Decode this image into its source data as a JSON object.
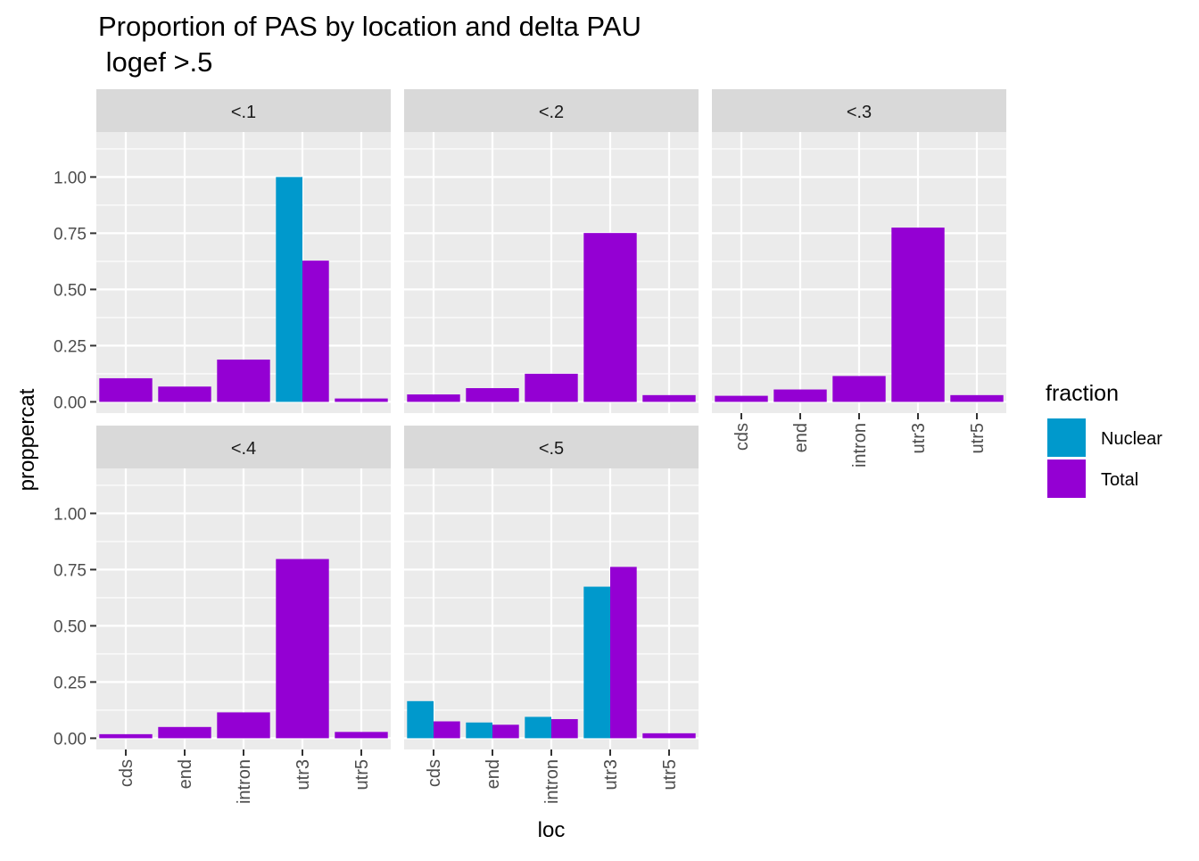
{
  "chart_data": {
    "type": "bar",
    "title_line1": "Proportion of PAS by location and delta PAU",
    "title_line2": " logef >.5",
    "xlabel": "loc",
    "ylabel": "proppercat",
    "ylim": [
      -0.05,
      1.2
    ],
    "yticks": [
      0,
      0.25,
      0.5,
      0.75,
      1.0
    ],
    "ytick_labels": [
      "0.00",
      "0.25",
      "0.50",
      "0.75",
      "1.00"
    ],
    "categories": [
      "cds",
      "end",
      "intron",
      "utr3",
      "utr5"
    ],
    "legend": {
      "title": "fraction",
      "position": "right",
      "entries": [
        {
          "name": "Nuclear",
          "color": "#0099CC"
        },
        {
          "name": "Total",
          "color": "#9400D3"
        }
      ]
    },
    "panels": [
      {
        "label": "<.1",
        "bars": [
          {
            "loc": "cds",
            "fraction": "Total",
            "value": 0.105
          },
          {
            "loc": "end",
            "fraction": "Total",
            "value": 0.068
          },
          {
            "loc": "intron",
            "fraction": "Total",
            "value": 0.188
          },
          {
            "loc": "utr3",
            "fraction": "Nuclear",
            "value": 1.0
          },
          {
            "loc": "utr3",
            "fraction": "Total",
            "value": 0.628
          },
          {
            "loc": "utr5",
            "fraction": "Total",
            "value": 0.015
          }
        ]
      },
      {
        "label": "<.2",
        "bars": [
          {
            "loc": "cds",
            "fraction": "Total",
            "value": 0.033
          },
          {
            "loc": "end",
            "fraction": "Total",
            "value": 0.061
          },
          {
            "loc": "intron",
            "fraction": "Total",
            "value": 0.125
          },
          {
            "loc": "utr3",
            "fraction": "Total",
            "value": 0.751
          },
          {
            "loc": "utr5",
            "fraction": "Total",
            "value": 0.03
          }
        ]
      },
      {
        "label": "<.3",
        "bars": [
          {
            "loc": "cds",
            "fraction": "Total",
            "value": 0.027
          },
          {
            "loc": "end",
            "fraction": "Total",
            "value": 0.055
          },
          {
            "loc": "intron",
            "fraction": "Total",
            "value": 0.115
          },
          {
            "loc": "utr3",
            "fraction": "Total",
            "value": 0.775
          },
          {
            "loc": "utr5",
            "fraction": "Total",
            "value": 0.03
          }
        ]
      },
      {
        "label": "<.4",
        "bars": [
          {
            "loc": "cds",
            "fraction": "Total",
            "value": 0.018
          },
          {
            "loc": "end",
            "fraction": "Total",
            "value": 0.05
          },
          {
            "loc": "intron",
            "fraction": "Total",
            "value": 0.115
          },
          {
            "loc": "utr3",
            "fraction": "Total",
            "value": 0.797
          },
          {
            "loc": "utr5",
            "fraction": "Total",
            "value": 0.028
          }
        ]
      },
      {
        "label": "<.5",
        "bars": [
          {
            "loc": "cds",
            "fraction": "Nuclear",
            "value": 0.165
          },
          {
            "loc": "cds",
            "fraction": "Total",
            "value": 0.075
          },
          {
            "loc": "end",
            "fraction": "Nuclear",
            "value": 0.07
          },
          {
            "loc": "end",
            "fraction": "Total",
            "value": 0.06
          },
          {
            "loc": "intron",
            "fraction": "Nuclear",
            "value": 0.095
          },
          {
            "loc": "intron",
            "fraction": "Total",
            "value": 0.085
          },
          {
            "loc": "utr3",
            "fraction": "Nuclear",
            "value": 0.674
          },
          {
            "loc": "utr3",
            "fraction": "Total",
            "value": 0.762
          },
          {
            "loc": "utr5",
            "fraction": "Total",
            "value": 0.022
          }
        ]
      }
    ]
  }
}
